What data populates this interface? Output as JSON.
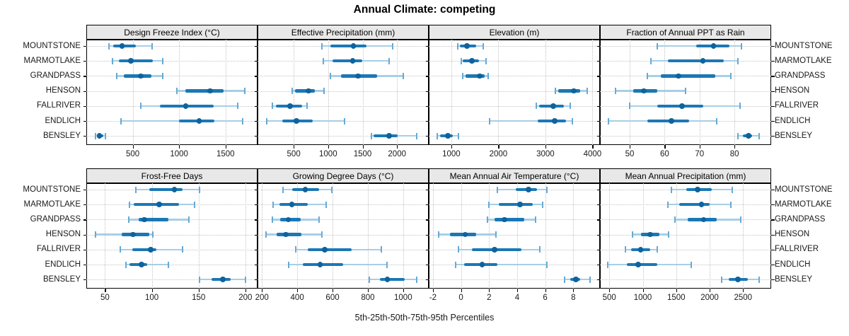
{
  "title": "Annual Climate: competing",
  "caption": "5th-25th-50th-75th-95th Percentiles",
  "stations": [
    "MOUNTSTONE",
    "MARMOTLAKE",
    "GRANDPASS",
    "HENSON",
    "FALLRIVER",
    "ENDLICH",
    "BENSLEY"
  ],
  "colors": {
    "whisker_band": "#a7cfe6",
    "whisker_cap": "#68a9d4",
    "iqr_bar": "#1b78b5",
    "median_dot": "#0f639c",
    "strip_background": "#e8e8e8",
    "gridline": "#c3c3c3",
    "border": "#000000",
    "text": "#1a1a1a"
  },
  "chart_data": {
    "type": "dotplot-intervals",
    "description": "Trellis of 8 panels; each row shows 5th-25th-50th-75th-95th percentile intervals per station",
    "percentile_labels": [
      "5th",
      "25th",
      "50th",
      "75th",
      "95th"
    ],
    "legend_position": "none",
    "grid": "dotted",
    "panels": [
      {
        "title": "Design Freeze Index (°C)",
        "grid_row": 0,
        "grid_col": 0,
        "xlim": [
          0,
          1845
        ],
        "ticks": [
          500,
          1000,
          1500
        ],
        "series": [
          {
            "name": "MOUNTSTONE",
            "values": [
              245,
              290,
              385,
              530,
              710
            ]
          },
          {
            "name": "MARMOTLAKE",
            "values": [
              280,
              350,
              480,
              715,
              820
            ]
          },
          {
            "name": "GRANDPASS",
            "values": [
              325,
              405,
              585,
              700,
              825
            ]
          },
          {
            "name": "HENSON",
            "values": [
              975,
              1070,
              1335,
              1480,
              1705
            ]
          },
          {
            "name": "FALLRIVER",
            "values": [
              585,
              790,
              1070,
              1375,
              1635
            ]
          },
          {
            "name": "ENDLICH",
            "values": [
              370,
              1000,
              1215,
              1380,
              1685
            ]
          },
          {
            "name": "BENSLEY",
            "values": [
              100,
              115,
              140,
              180,
              205
            ]
          }
        ]
      },
      {
        "title": "Effective Precipitation (mm)",
        "grid_row": 0,
        "grid_col": 1,
        "xlim": [
          -25,
          2460
        ],
        "ticks": [
          500,
          1000,
          1500,
          2000
        ],
        "series": [
          {
            "name": "MOUNTSTONE",
            "values": [
              910,
              1035,
              1365,
              1560,
              1940
            ]
          },
          {
            "name": "MARMOTLAKE",
            "values": [
              930,
              1065,
              1355,
              1495,
              1885
            ]
          },
          {
            "name": "GRANDPASS",
            "values": [
              1035,
              1190,
              1435,
              1710,
              2090
            ]
          },
          {
            "name": "HENSON",
            "values": [
              480,
              520,
              715,
              810,
              940
            ]
          },
          {
            "name": "FALLRIVER",
            "values": [
              190,
              245,
              450,
              625,
              695
            ]
          },
          {
            "name": "ENDLICH",
            "values": [
              110,
              335,
              540,
              775,
              1240
            ]
          },
          {
            "name": "BENSLEY",
            "values": [
              1630,
              1660,
              1885,
              2010,
              2290
            ]
          }
        ]
      },
      {
        "title": "Elevation (m)",
        "grid_row": 0,
        "grid_col": 2,
        "xlim": [
          520,
          4160
        ],
        "ticks": [
          1000,
          2000,
          3000,
          4000
        ],
        "series": [
          {
            "name": "MOUNTSTONE",
            "values": [
              1135,
              1180,
              1330,
              1525,
              1675
            ]
          },
          {
            "name": "MARMOTLAKE",
            "values": [
              1210,
              1240,
              1435,
              1585,
              1735
            ]
          },
          {
            "name": "GRANDPASS",
            "values": [
              1240,
              1300,
              1600,
              1705,
              1780
            ]
          },
          {
            "name": "HENSON",
            "values": [
              3210,
              3270,
              3600,
              3735,
              3885
            ]
          },
          {
            "name": "FALLRIVER",
            "values": [
              2805,
              2865,
              3165,
              3390,
              3525
            ]
          },
          {
            "name": "ENDLICH",
            "values": [
              1810,
              2835,
              3195,
              3435,
              3570
            ]
          },
          {
            "name": "BENSLEY",
            "values": [
              700,
              760,
              925,
              1030,
              1150
            ]
          }
        ]
      },
      {
        "title": "Fraction of Annual PPT as Rain",
        "grid_row": 0,
        "grid_col": 3,
        "xlim": [
          41.5,
          90.5
        ],
        "ticks": [
          50,
          60,
          70,
          80
        ],
        "series": [
          {
            "name": "MOUNTSTONE",
            "values": [
              58,
              69,
              74,
              78.5,
              82
            ]
          },
          {
            "name": "MARMOTLAKE",
            "values": [
              56,
              61,
              71,
              77,
              81
            ]
          },
          {
            "name": "GRANDPASS",
            "values": [
              55,
              59,
              64,
              74.5,
              79
            ]
          },
          {
            "name": "HENSON",
            "values": [
              46,
              51,
              54,
              58,
              66
            ]
          },
          {
            "name": "FALLRIVER",
            "values": [
              50,
              58,
              65,
              71,
              81.5
            ]
          },
          {
            "name": "ENDLICH",
            "values": [
              44,
              55,
              62,
              67,
              75
            ]
          },
          {
            "name": "BENSLEY",
            "values": [
              81,
              82.5,
              84,
              85,
              87
            ]
          }
        ]
      },
      {
        "title": "Frost-Free Days",
        "grid_row": 1,
        "grid_col": 0,
        "xlim": [
          30,
          213
        ],
        "ticks": [
          50,
          100,
          150,
          200
        ],
        "series": [
          {
            "name": "MOUNTSTONE",
            "values": [
              83,
              97,
              124,
              133,
              151
            ]
          },
          {
            "name": "MARMOTLAKE",
            "values": [
              76,
              81,
              108,
              129,
              146
            ]
          },
          {
            "name": "GRANDPASS",
            "values": [
              75,
              86,
              92,
              118,
              140
            ]
          },
          {
            "name": "HENSON",
            "values": [
              40,
              68,
              80,
              97,
              101
            ]
          },
          {
            "name": "FALLRIVER",
            "values": [
              66,
              79,
              99,
              105,
              133
            ]
          },
          {
            "name": "ENDLICH",
            "values": [
              72,
              76,
              89,
              95,
              118
            ]
          },
          {
            "name": "BENSLEY",
            "values": [
              151,
              164,
              176,
              184,
              200
            ]
          }
        ]
      },
      {
        "title": "Growing Degree Days (°C)",
        "grid_row": 1,
        "grid_col": 1,
        "xlim": [
          175,
          1145
        ],
        "ticks": [
          200,
          400,
          600,
          800,
          1000
        ],
        "series": [
          {
            "name": "MOUNTSTONE",
            "values": [
              320,
              370,
              445,
              525,
              595
            ]
          },
          {
            "name": "MARMOTLAKE",
            "values": [
              265,
              300,
              370,
              460,
              565
            ]
          },
          {
            "name": "GRANDPASS",
            "values": [
              260,
              305,
              350,
              420,
              525
            ]
          },
          {
            "name": "HENSON",
            "values": [
              225,
              285,
              335,
              425,
              540
            ]
          },
          {
            "name": "FALLRIVER",
            "values": [
              390,
              460,
              555,
              710,
              875
            ]
          },
          {
            "name": "ENDLICH",
            "values": [
              350,
              430,
              530,
              660,
              910
            ]
          },
          {
            "name": "BENSLEY",
            "values": [
              810,
              870,
              910,
              1010,
              1075
            ]
          }
        ]
      },
      {
        "title": "Mean Annual Air Temperature (°C)",
        "grid_row": 1,
        "grid_col": 2,
        "xlim": [
          -2.3,
          9.9
        ],
        "ticks": [
          -2,
          0,
          2,
          4,
          6,
          8
        ],
        "series": [
          {
            "name": "MOUNTSTONE",
            "values": [
              2.6,
              3.9,
              4.8,
              5.4,
              6.1
            ]
          },
          {
            "name": "MARMOTLAKE",
            "values": [
              2.0,
              2.7,
              4.2,
              5.1,
              5.8
            ]
          },
          {
            "name": "GRANDPASS",
            "values": [
              1.9,
              2.4,
              3.1,
              4.5,
              5.3
            ]
          },
          {
            "name": "HENSON",
            "values": [
              -1.6,
              -0.8,
              0.3,
              1.1,
              2.5
            ]
          },
          {
            "name": "FALLRIVER",
            "values": [
              -0.2,
              0.8,
              2.4,
              4.3,
              5.6
            ]
          },
          {
            "name": "ENDLICH",
            "values": [
              -0.4,
              0.2,
              1.5,
              2.6,
              6.1
            ]
          },
          {
            "name": "BENSLEY",
            "values": [
              7.4,
              7.8,
              8.2,
              8.5,
              9.2
            ]
          }
        ]
      },
      {
        "title": "Mean Annual Precipitation (mm)",
        "grid_row": 1,
        "grid_col": 3,
        "xlim": [
          360,
          2920
        ],
        "ticks": [
          500,
          1000,
          1500,
          2000,
          2500
        ],
        "series": [
          {
            "name": "MOUNTSTONE",
            "values": [
              1430,
              1655,
              1820,
              2030,
              2340
            ]
          },
          {
            "name": "MARMOTLAKE",
            "values": [
              1380,
              1550,
              1880,
              2000,
              2320
            ]
          },
          {
            "name": "GRANDPASS",
            "values": [
              1480,
              1670,
              1910,
              2110,
              2470
            ]
          },
          {
            "name": "HENSON",
            "values": [
              845,
              970,
              1110,
              1250,
              1390
            ]
          },
          {
            "name": "FALLRIVER",
            "values": [
              740,
              830,
              970,
              1110,
              1215
            ]
          },
          {
            "name": "ENDLICH",
            "values": [
              480,
              760,
              930,
              1215,
              1725
            ]
          },
          {
            "name": "BENSLEY",
            "values": [
              2180,
              2290,
              2420,
              2570,
              2740
            ]
          }
        ]
      }
    ]
  }
}
